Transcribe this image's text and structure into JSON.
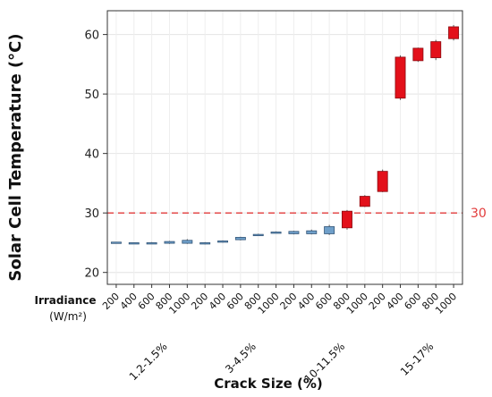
{
  "chart_data": {
    "type": "box",
    "ylabel": "Solar Cell Temperature (°C)",
    "xlabel": "Crack Size (%)",
    "x_header": "Irradiance",
    "x_header_unit": "(W/m²)",
    "ylim": [
      18,
      64
    ],
    "yticks": [
      20,
      30,
      40,
      50,
      60
    ],
    "grid": true,
    "reference_line": {
      "value": 30,
      "label": "30",
      "color": "#e23b3b"
    },
    "colors": {
      "below": "#6f9fc9",
      "above": "#e3101a",
      "below_stroke": "#335577",
      "above_stroke": "#8a0a0f"
    },
    "groups": [
      {
        "name": "1.2-1.5%",
        "boxes": [
          {
            "irradiance": "200",
            "min": 25.0,
            "q1": 25.0,
            "q3": 25.1,
            "max": 25.1
          },
          {
            "irradiance": "400",
            "min": 24.9,
            "q1": 24.9,
            "q3": 25.0,
            "max": 25.0
          },
          {
            "irradiance": "600",
            "min": 24.8,
            "q1": 24.8,
            "q3": 25.0,
            "max": 25.1
          },
          {
            "irradiance": "800",
            "min": 24.8,
            "q1": 24.9,
            "q3": 25.2,
            "max": 25.3
          },
          {
            "irradiance": "1000",
            "min": 24.8,
            "q1": 24.9,
            "q3": 25.4,
            "max": 25.6
          }
        ]
      },
      {
        "name": "3-4.5%",
        "boxes": [
          {
            "irradiance": "200",
            "min": 24.7,
            "q1": 24.8,
            "q3": 25.0,
            "max": 25.1
          },
          {
            "irradiance": "400",
            "min": 25.0,
            "q1": 25.1,
            "q3": 25.3,
            "max": 25.4
          },
          {
            "irradiance": "600",
            "min": 25.4,
            "q1": 25.5,
            "q3": 25.9,
            "max": 26.0
          },
          {
            "irradiance": "800",
            "min": 26.2,
            "q1": 26.2,
            "q3": 26.4,
            "max": 26.5
          },
          {
            "irradiance": "1000",
            "min": 26.7,
            "q1": 26.7,
            "q3": 26.8,
            "max": 26.9
          }
        ]
      },
      {
        "name": "10-11.5%",
        "boxes": [
          {
            "irradiance": "200",
            "min": 26.4,
            "q1": 26.5,
            "q3": 26.9,
            "max": 27.0
          },
          {
            "irradiance": "400",
            "min": 26.4,
            "q1": 26.5,
            "q3": 27.0,
            "max": 27.2
          },
          {
            "irradiance": "600",
            "min": 26.3,
            "q1": 26.5,
            "q3": 27.7,
            "max": 28.0
          },
          {
            "irradiance": "800",
            "min": 27.2,
            "q1": 27.5,
            "q3": 30.3,
            "max": 30.5
          },
          {
            "irradiance": "1000",
            "min": 31.0,
            "q1": 31.1,
            "q3": 32.8,
            "max": 33.0
          }
        ]
      },
      {
        "name": "15-17%",
        "boxes": [
          {
            "irradiance": "200",
            "min": 33.5,
            "q1": 33.6,
            "q3": 37.0,
            "max": 37.3
          },
          {
            "irradiance": "400",
            "min": 49.0,
            "q1": 49.3,
            "q3": 56.2,
            "max": 56.5
          },
          {
            "irradiance": "600",
            "min": 55.4,
            "q1": 55.6,
            "q3": 57.7,
            "max": 57.8
          },
          {
            "irradiance": "800",
            "min": 55.7,
            "q1": 56.1,
            "q3": 58.8,
            "max": 59.1
          },
          {
            "irradiance": "1000",
            "min": 59.0,
            "q1": 59.3,
            "q3": 61.3,
            "max": 61.6
          }
        ]
      }
    ]
  }
}
